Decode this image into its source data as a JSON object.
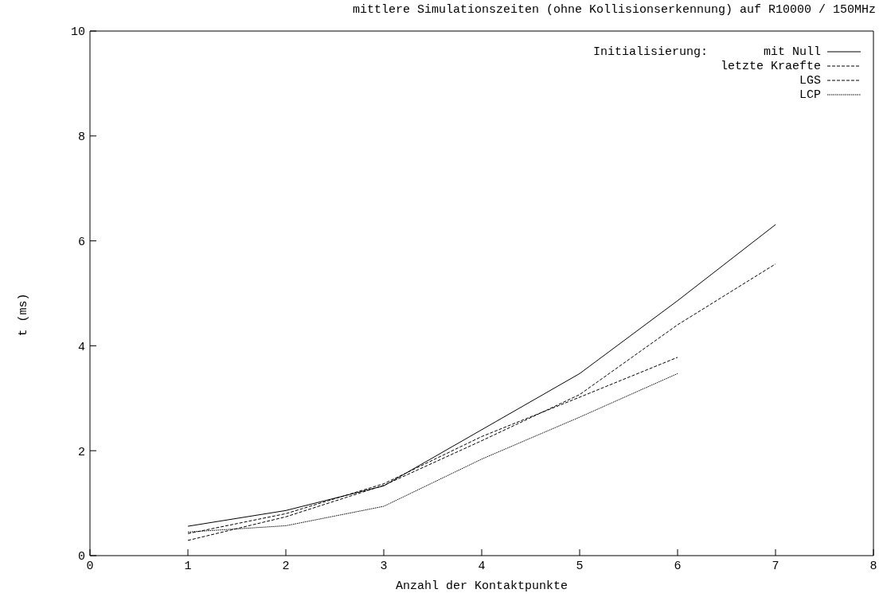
{
  "chart_data": {
    "type": "line",
    "title": "mittlere Simulationszeiten (ohne Kollisionserkennung) auf R10000 / 150MHz",
    "xlabel": "Anzahl der Kontaktpunkte",
    "ylabel": "t (ms)",
    "legend_title": "Initialisierung:",
    "x": [
      1,
      2,
      3,
      4,
      5,
      6,
      7
    ],
    "xlim": [
      0,
      8
    ],
    "xticks": [
      0,
      1,
      2,
      3,
      4,
      5,
      6,
      7,
      8
    ],
    "ylim": [
      0,
      10
    ],
    "yticks": [
      0,
      2,
      4,
      6,
      8,
      10
    ],
    "legend": "top right",
    "marker": "none",
    "series": [
      {
        "name": "mit Null",
        "color": "#000000",
        "line_style": "solid",
        "values": [
          0.56,
          0.86,
          1.33,
          2.4,
          3.47,
          4.86,
          6.31
        ]
      },
      {
        "name": "letzte Kraefte",
        "color": "#000000",
        "line_style": "dashed",
        "values": [
          0.29,
          0.74,
          1.34,
          2.19,
          3.07,
          4.4,
          5.56
        ]
      },
      {
        "name": "LGS",
        "color": "#000000",
        "line_style": "dashed",
        "values": [
          0.42,
          0.8,
          1.37,
          2.27,
          3.02,
          3.78,
          null
        ]
      },
      {
        "name": "LCP",
        "color": "#000000",
        "line_style": "dotted",
        "values": [
          0.45,
          0.57,
          0.94,
          1.84,
          2.64,
          3.47,
          null
        ]
      }
    ]
  }
}
